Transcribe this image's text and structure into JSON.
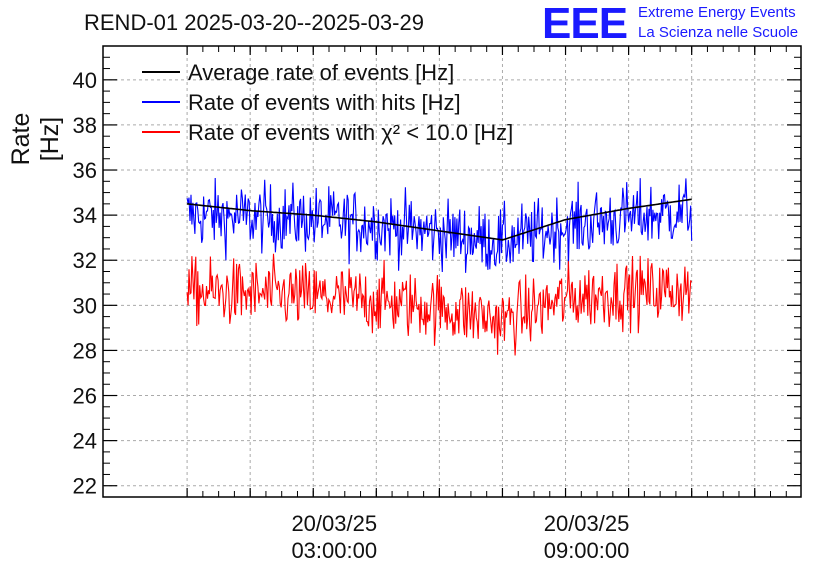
{
  "header": {
    "title": "REND-01 2025-03-20--2025-03-29",
    "logo": "EEE",
    "logo_line1": "Extreme Energy Events",
    "logo_line2": "La Scienza nelle Scuole"
  },
  "chart_data": {
    "type": "line",
    "title": "REND-01 2025-03-20--2025-03-29",
    "xlabel": "",
    "ylabel": "Rate [Hz]",
    "ylim": [
      21.5,
      41.5
    ],
    "xlim_hours": [
      -2.5,
      14.1
    ],
    "yticks": [
      22,
      24,
      26,
      28,
      30,
      32,
      34,
      36,
      38,
      40
    ],
    "xtick_labels": [
      {
        "hour": 3,
        "date": "20/03/25",
        "time": "03:00:00"
      },
      {
        "hour": 9,
        "date": "20/03/25",
        "time": "09:00:00"
      }
    ],
    "grid": true,
    "legend_position": "top-left",
    "series": [
      {
        "name": "Average rate of events [Hz]",
        "color": "#000000",
        "x_hours": [
          -0.5,
          1,
          2.5,
          4,
          5.5,
          7,
          8.5,
          10,
          11.5
        ],
        "values": [
          34.5,
          34.2,
          34.0,
          33.7,
          33.3,
          32.9,
          33.8,
          34.3,
          34.7
        ]
      },
      {
        "name": "Rate of events with hits [Hz]",
        "color": "#0000ff",
        "x_hours": [
          -0.5,
          1,
          2.5,
          4,
          5.5,
          7,
          8.5,
          10,
          11.5
        ],
        "values": [
          34.0,
          33.9,
          33.8,
          33.6,
          33.2,
          32.8,
          33.5,
          33.9,
          34.2
        ]
      },
      {
        "name": "Rate of events with χ² < 10.0 [Hz]",
        "color": "#ff0000",
        "x_hours": [
          -0.5,
          1,
          2.5,
          4,
          5.5,
          7,
          8.5,
          10,
          11.5
        ],
        "values": [
          30.6,
          30.5,
          30.4,
          30.2,
          29.9,
          29.3,
          30.3,
          30.6,
          30.7
        ]
      }
    ]
  }
}
